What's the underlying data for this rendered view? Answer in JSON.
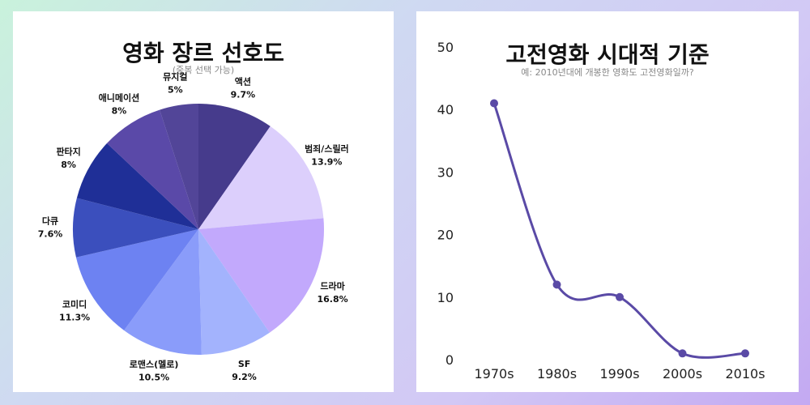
{
  "colors": {
    "accent": "#5a4aa6"
  },
  "chart_data": [
    {
      "type": "pie",
      "title": "영화 장르 선호도",
      "subtitle": "(중복 선택 가능)",
      "slices": [
        {
          "label": "액션",
          "value": 9.7,
          "value_label": "9.7%",
          "color": "#463b8c"
        },
        {
          "label": "범죄/스릴러",
          "value": 13.9,
          "value_label": "13.9%",
          "color": "#dccffc"
        },
        {
          "label": "드라마",
          "value": 16.8,
          "value_label": "16.8%",
          "color": "#c2a9fc"
        },
        {
          "label": "SF",
          "value": 9.2,
          "value_label": "9.2%",
          "color": "#a3b3fd"
        },
        {
          "label": "로맨스(멜로)",
          "value": 10.5,
          "value_label": "10.5%",
          "color": "#8a9cfa"
        },
        {
          "label": "코미디",
          "value": 11.3,
          "value_label": "11.3%",
          "color": "#6d82f2"
        },
        {
          "label": "다큐",
          "value": 7.6,
          "value_label": "7.6%",
          "color": "#3b4fbd"
        },
        {
          "label": "판타지",
          "value": 8,
          "value_label": "8%",
          "color": "#1f2f97"
        },
        {
          "label": "애니메이션",
          "value": 8,
          "value_label": "8%",
          "color": "#5a49a8"
        },
        {
          "label": "뮤지컬",
          "value": 5,
          "value_label": "5%",
          "color": "#524598"
        }
      ]
    },
    {
      "type": "line",
      "title": "고전영화 시대적 기준",
      "subtitle": "예: 2010년대에 개봉한 영화도 고전영화일까?",
      "categories": [
        "1970s",
        "1980s",
        "1990s",
        "2000s",
        "2010s"
      ],
      "values": [
        41,
        12,
        10,
        1,
        1
      ],
      "ylim": [
        0,
        50
      ],
      "yticks": [
        0,
        10,
        20,
        30,
        40,
        50
      ],
      "grid": false,
      "color": "#5a4aa6"
    }
  ]
}
